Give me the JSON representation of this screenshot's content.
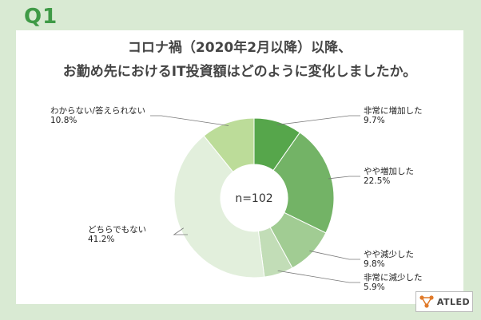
{
  "header": {
    "question_label": "Q1",
    "title_line1": "コロナ禍（2020年2月以降）以降、",
    "title_line2": "お勤め先におけるIT投資額はどのように変化しましたか。"
  },
  "chart_data": {
    "type": "pie",
    "variant": "donut",
    "center_label": "n=102",
    "unit": "%",
    "slices": [
      {
        "label": "非常に増加した",
        "value": 9.7,
        "value_text": "9.7%",
        "color": "#56a64b"
      },
      {
        "label": "やや増加した",
        "value": 22.5,
        "value_text": "22.5%",
        "color": "#73b366"
      },
      {
        "label": "やや減少した",
        "value": 9.8,
        "value_text": "9.8%",
        "color": "#a1cc93"
      },
      {
        "label": "非常に減少した",
        "value": 5.9,
        "value_text": "5.9%",
        "color": "#c2ddb7"
      },
      {
        "label": "どちらでもない",
        "value": 41.2,
        "value_text": "41.2%",
        "color": "#e2efdc"
      },
      {
        "label": "わからない/答えられない",
        "value": 10.8,
        "value_text": "10.8%",
        "color": "#bcdc99"
      }
    ]
  },
  "brand": {
    "logo_text": "ATLED",
    "icon": "network-nodes-icon"
  }
}
